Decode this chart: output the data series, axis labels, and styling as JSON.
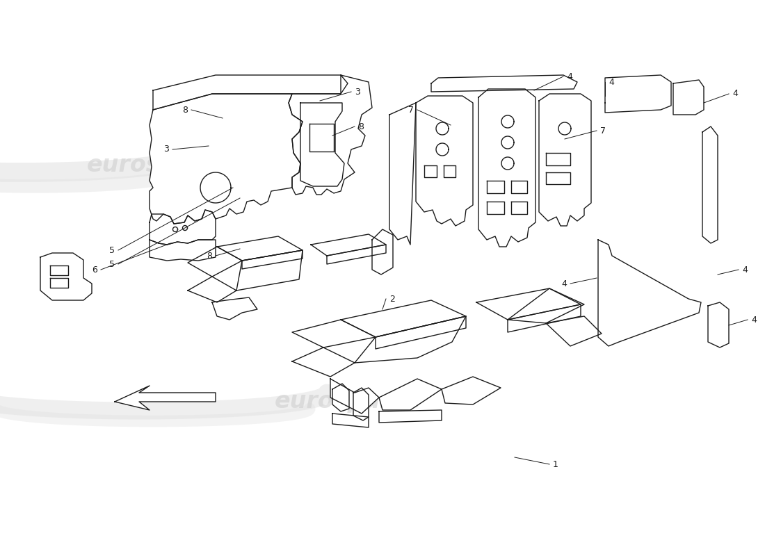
{
  "background_color": "#ffffff",
  "line_color": "#1a1a1a",
  "label_color": "#1a1a1a",
  "figsize": [
    11.0,
    8.0
  ],
  "dpi": 100,
  "watermark_color": "#d0d0d0",
  "lw": 1.0
}
